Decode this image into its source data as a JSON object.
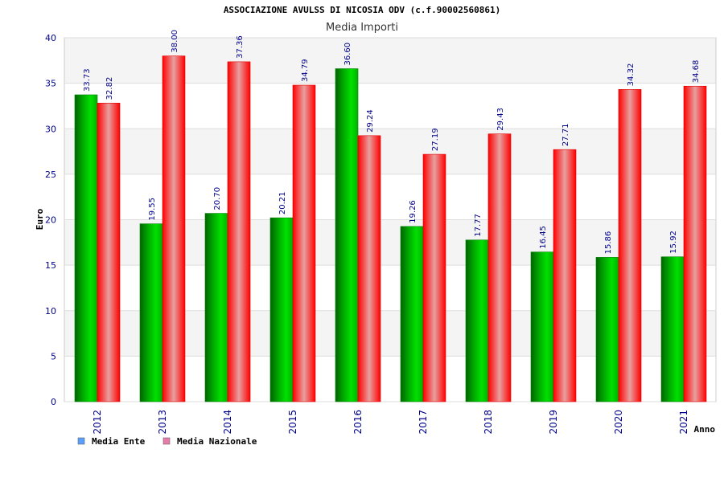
{
  "chart_data": {
    "type": "bar",
    "title": "ASSOCIAZIONE AVULSS DI NICOSIA ODV (c.f.90002560861)",
    "subtitle": "Media Importi",
    "xlabel": "Anno",
    "ylabel": "Euro",
    "ylim": [
      0,
      40
    ],
    "yticks": [
      0,
      5,
      10,
      15,
      20,
      25,
      30,
      35,
      40
    ],
    "categories": [
      "2012",
      "2013",
      "2014",
      "2015",
      "2016",
      "2017",
      "2018",
      "2019",
      "2020",
      "2021"
    ],
    "series": [
      {
        "name": "Media Ente",
        "color": "#00c000",
        "values": [
          33.73,
          19.55,
          20.7,
          20.21,
          36.6,
          19.26,
          17.77,
          16.45,
          15.86,
          15.92
        ],
        "labels": [
          "33.73",
          "19.55",
          "20.70",
          "20.21",
          "36.60",
          "19.26",
          "17.77",
          "16.45",
          "15.86",
          "15.92"
        ]
      },
      {
        "name": "Media Nazionale",
        "color": "#ff1a1a",
        "values": [
          32.82,
          38.0,
          37.36,
          34.79,
          29.24,
          27.19,
          29.43,
          27.71,
          34.32,
          34.68
        ],
        "labels": [
          "32.82",
          "38.00",
          "37.36",
          "34.79",
          "29.24",
          "27.19",
          "29.43",
          "27.71",
          "34.32",
          "34.68"
        ]
      }
    ],
    "legend": {
      "placement": "bottom-left",
      "items": [
        {
          "label": "Media Ente",
          "swatch": "#5aa0ff"
        },
        {
          "label": "Media Nazionale",
          "swatch": "#e87ca8"
        }
      ]
    },
    "grid": true,
    "plot_background": [
      "#f4f4f4",
      "#ffffff"
    ]
  }
}
